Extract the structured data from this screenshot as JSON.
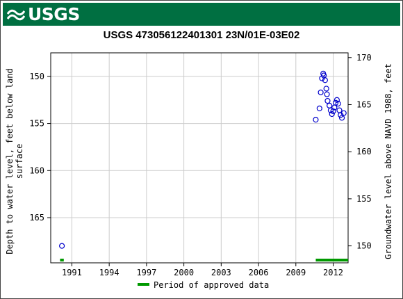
{
  "header": {
    "logo_text": "USGS",
    "logo_icon": "usgs-wave-icon",
    "brand_color": "#006F41"
  },
  "chart_data": {
    "type": "scatter",
    "title": "USGS 473056122401301 23N/01E-03E02",
    "ylabel_left": "Depth to water level, feet below land surface",
    "ylabel_left_lines": [
      "Depth to water level, feet below land",
      "surface"
    ],
    "ylabel_right": "Groundwater level above NAVD 1988, feet",
    "x_ticks": [
      "1991",
      "1994",
      "1997",
      "2000",
      "2003",
      "2006",
      "2009",
      "2012"
    ],
    "xlim": [
      1989.3,
      2013.2
    ],
    "ylim_left": [
      147.5,
      169.8
    ],
    "y_ticks_left": [
      150,
      155,
      160,
      165
    ],
    "y_ticks_right": [
      170,
      165,
      160,
      155,
      150
    ],
    "right_axis_offset": 318.0,
    "grid": true,
    "series": [
      {
        "marker": "open-circle",
        "color": "#0000cc",
        "points": [
          [
            1990.2,
            168.0
          ],
          [
            2010.6,
            154.6
          ],
          [
            2010.9,
            153.4
          ],
          [
            2011.0,
            151.7
          ],
          [
            2011.1,
            150.2
          ],
          [
            2011.2,
            149.7
          ],
          [
            2011.25,
            149.9
          ],
          [
            2011.35,
            150.4
          ],
          [
            2011.45,
            151.3
          ],
          [
            2011.5,
            151.9
          ],
          [
            2011.55,
            152.6
          ],
          [
            2011.7,
            153.1
          ],
          [
            2011.8,
            153.6
          ],
          [
            2011.9,
            154.0
          ],
          [
            2012.0,
            153.7
          ],
          [
            2012.1,
            153.3
          ],
          [
            2012.2,
            152.8
          ],
          [
            2012.3,
            152.5
          ],
          [
            2012.4,
            152.9
          ],
          [
            2012.5,
            153.6
          ],
          [
            2012.6,
            154.1
          ],
          [
            2012.7,
            154.4
          ],
          [
            2012.85,
            153.9
          ]
        ]
      }
    ],
    "approved_periods": [
      [
        1990.05,
        1990.35
      ],
      [
        2010.6,
        2013.2
      ]
    ],
    "approved_color": "#009900",
    "legend": {
      "label": "Period of approved data",
      "placement": "bottom-center"
    }
  }
}
